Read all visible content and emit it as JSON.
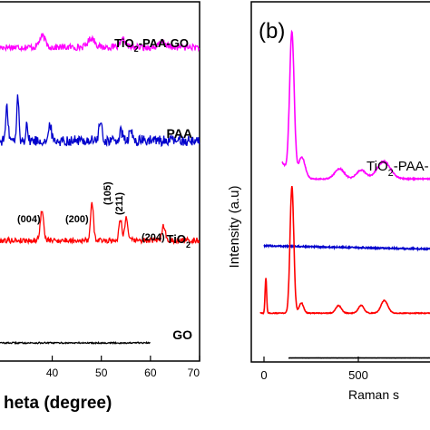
{
  "chart_data": [
    {
      "type": "line",
      "panel_label": "",
      "xlabel": "heta (degree)",
      "ylabel": "",
      "xlim": [
        29,
        70
      ],
      "x_ticks": [
        40,
        50,
        60,
        70
      ],
      "grid": false,
      "series": [
        {
          "name": "TiO2-PAA-GO",
          "label_main": "TiO",
          "label_sub": "2",
          "label_rest": "-PAA-GO",
          "color": "#ff00ff",
          "baseline": 0.1,
          "noise": 0.018,
          "peaks": [
            [
              38.0,
              0.06,
              0.6
            ],
            [
              48.0,
              0.05,
              0.7
            ],
            [
              54.5,
              0.04,
              0.5
            ],
            [
              62.5,
              0.03,
              0.6
            ]
          ]
        },
        {
          "name": "PAA",
          "label_main": "PAA",
          "label_sub": "",
          "label_rest": "",
          "color": "#0000cc",
          "baseline": 0.1,
          "noise": 0.03,
          "peaks": [
            [
              30.8,
              0.18,
              0.25
            ],
            [
              33.0,
              0.26,
              0.2
            ],
            [
              34.8,
              0.1,
              0.2
            ],
            [
              39.6,
              0.09,
              0.25
            ],
            [
              49.8,
              0.1,
              0.3
            ],
            [
              54.0,
              0.05,
              0.3
            ],
            [
              56.0,
              0.05,
              0.3
            ]
          ]
        },
        {
          "name": "TiO2",
          "label_main": "TiO",
          "label_sub": "2",
          "label_rest": "",
          "color": "#ff0000",
          "baseline": 0.1,
          "noise": 0.015,
          "peaks": [
            [
              37.9,
              0.16,
              0.35
            ],
            [
              48.1,
              0.2,
              0.3
            ],
            [
              53.9,
              0.12,
              0.3
            ],
            [
              55.1,
              0.13,
              0.3
            ],
            [
              62.7,
              0.08,
              0.35
            ]
          ]
        },
        {
          "name": "GO",
          "label_main": "GO",
          "label_sub": "",
          "label_rest": "",
          "color": "#000000",
          "baseline": 0.05,
          "noise": 0.004,
          "x_end": 60,
          "peaks": []
        }
      ],
      "annotations": [
        "(004)",
        "(200)",
        "(105)",
        "(211)",
        "(204)"
      ]
    },
    {
      "type": "line",
      "panel_label": "(b)",
      "xlabel": "Raman s",
      "ylabel": "Intensity (a.u)",
      "xlim": [
        -60,
        900
      ],
      "x_ticks": [
        0,
        500
      ],
      "grid": false,
      "series": [
        {
          "name": "TiO2-PAA-",
          "label_main": "TiO",
          "label_sub": "2",
          "label_rest": "-PAA-",
          "color": "#ff00ff",
          "x_start": 95,
          "x_end": 900,
          "rise_from": 95,
          "rise_to": 155,
          "baseline": 0.08,
          "noise": 0.004,
          "peaks": [
            [
              148,
              1.0,
              12
            ],
            [
              200,
              0.15,
              18
            ],
            [
              400,
              0.07,
              25
            ],
            [
              515,
              0.06,
              25
            ],
            [
              635,
              0.12,
              35
            ]
          ]
        },
        {
          "name": "",
          "color": "#0000cc",
          "x_start": 0,
          "x_end": 900,
          "baseline": 0.1,
          "noise": 0.02,
          "slope": -0.0001,
          "peaks": []
        },
        {
          "name": "",
          "color": "#ff0000",
          "x_start": -20,
          "x_end": 900,
          "baseline": 0.02,
          "noise": 0.003,
          "peaks": [
            [
              10,
              0.28,
              4
            ],
            [
              148,
              1.0,
              10
            ],
            [
              198,
              0.08,
              12
            ],
            [
              395,
              0.06,
              15
            ],
            [
              515,
              0.06,
              15
            ],
            [
              638,
              0.1,
              18
            ]
          ]
        },
        {
          "name": "",
          "color": "#000000",
          "x_start": 130,
          "x_end": 900,
          "baseline": 0.02,
          "noise": 0.003,
          "peaks": []
        }
      ]
    }
  ]
}
